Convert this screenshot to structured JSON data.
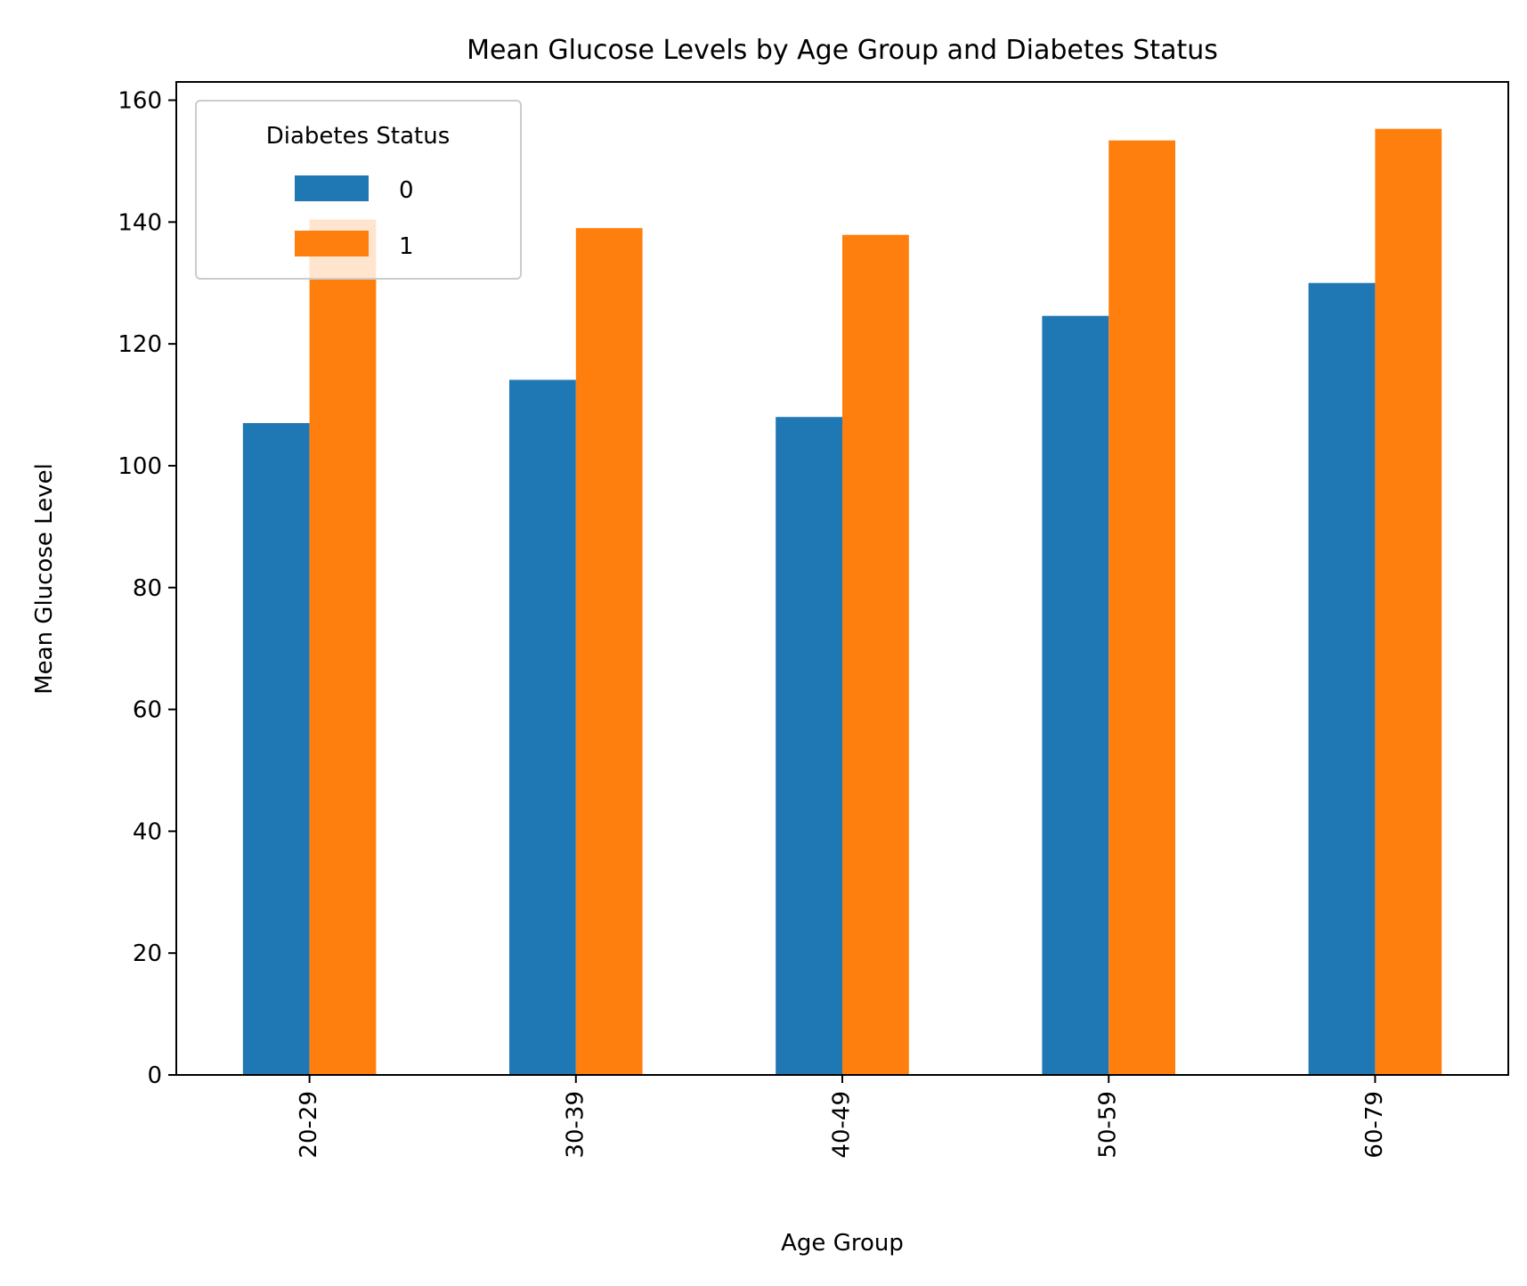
{
  "chart_data": {
    "type": "bar",
    "title": "Mean Glucose Levels by Age Group and Diabetes Status",
    "xlabel": "Age Group",
    "ylabel": "Mean Glucose Level",
    "categories": [
      "20-29",
      "30-39",
      "40-49",
      "50-59",
      "60-79"
    ],
    "series": [
      {
        "name": "0",
        "values": [
          107.0,
          114.1,
          108.0,
          124.6,
          130.0
        ],
        "color": "#1f77b4"
      },
      {
        "name": "1",
        "values": [
          140.4,
          139.0,
          137.9,
          153.4,
          155.3
        ],
        "color": "#ff7f0e"
      }
    ],
    "ylim": [
      0,
      163
    ],
    "yticks": [
      0,
      20,
      40,
      60,
      80,
      100,
      120,
      140,
      160
    ],
    "x_tick_rotation": "vertical",
    "grid": false,
    "legend": {
      "title": "Diabetes Status",
      "placement": "top-left"
    }
  }
}
